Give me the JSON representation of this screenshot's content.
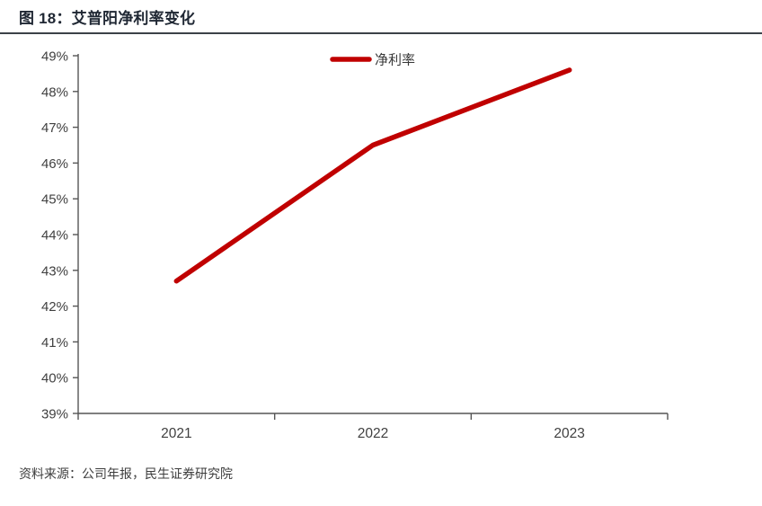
{
  "header": {
    "figure_label": "图 18：艾普阳净利率变化"
  },
  "footer": {
    "source": "资料来源：公司年报，民生证券研究院"
  },
  "chart_data": {
    "type": "line",
    "title": "艾普阳净利率变化",
    "categories": [
      "2021",
      "2022",
      "2023"
    ],
    "series": [
      {
        "name": "净利率",
        "values": [
          42.7,
          46.5,
          48.6
        ],
        "color": "#c00000"
      }
    ],
    "xlabel": "",
    "ylabel": "",
    "ylim": [
      39,
      49
    ],
    "ytick_step": 1,
    "ytick_suffix": "%",
    "grid": false,
    "legend_position": "top-center"
  },
  "colors": {
    "line_red": "#c00000",
    "axis_gray": "#555555",
    "label_gray": "#404040",
    "title_dark": "#1f2733"
  }
}
